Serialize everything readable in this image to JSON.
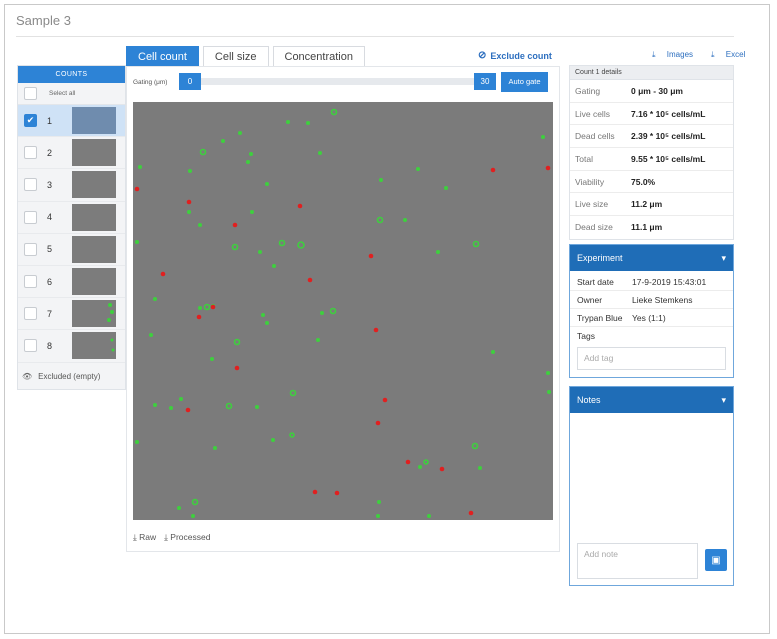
{
  "sample_title": "Sample 3",
  "counts": {
    "header": "COUNTS",
    "select_all": "Select all",
    "items": [
      {
        "label": "1",
        "checked": true
      },
      {
        "label": "2",
        "checked": false
      },
      {
        "label": "3",
        "checked": false
      },
      {
        "label": "4",
        "checked": false
      },
      {
        "label": "5",
        "checked": false
      },
      {
        "label": "6",
        "checked": false
      },
      {
        "label": "7",
        "checked": false
      },
      {
        "label": "8",
        "checked": false
      }
    ],
    "excluded_label": "Excluded (empty)"
  },
  "tabs": [
    {
      "label": "Cell count",
      "active": true
    },
    {
      "label": "Cell size",
      "active": false
    },
    {
      "label": "Concentration",
      "active": false
    }
  ],
  "exclude_count_label": "Exclude count",
  "gating": {
    "label": "Gating (μm)",
    "min": "0",
    "max": "30",
    "auto_gate": "Auto gate"
  },
  "downloads": {
    "raw": "Raw",
    "processed": "Processed",
    "images": "Images",
    "excel": "Excel"
  },
  "details": {
    "header": "Count 1 details",
    "rows": [
      {
        "key": "Gating",
        "value": "0 μm - 30 μm"
      },
      {
        "key": "Live cells",
        "value": "7.16 * 10⁵ cells/mL"
      },
      {
        "key": "Dead cells",
        "value": "2.39 * 10⁵ cells/mL"
      },
      {
        "key": "Total",
        "value": "9.55 * 10⁵ cells/mL"
      },
      {
        "key": "Viability",
        "value": "75.0%"
      },
      {
        "key": "Live size",
        "value": "11.2 μm"
      },
      {
        "key": "Dead size",
        "value": "11.1 μm"
      }
    ]
  },
  "experiment": {
    "title": "Experiment",
    "rows": [
      {
        "key": "Start date",
        "value": "17-9-2019 15:43:01"
      },
      {
        "key": "Owner",
        "value": "Lieke Stemkens"
      },
      {
        "key": "Trypan Blue",
        "value": "Yes (1:1)"
      },
      {
        "key": "Tags",
        "value": ""
      }
    ],
    "tag_placeholder": "Add tag"
  },
  "notes": {
    "title": "Notes",
    "placeholder": "Add note"
  },
  "colors": {
    "accent": "#2d83d6",
    "panel_header": "#1f6db7",
    "live_cell": "#3ecf3e",
    "dead_cell": "#e02020",
    "image_bg": "#7b7b7b"
  },
  "icons": {
    "exclude": "eye-slash-icon",
    "download": "download-icon",
    "chevron": "chevron-down-icon",
    "save": "floppy-disk-icon",
    "check": "check-icon"
  }
}
